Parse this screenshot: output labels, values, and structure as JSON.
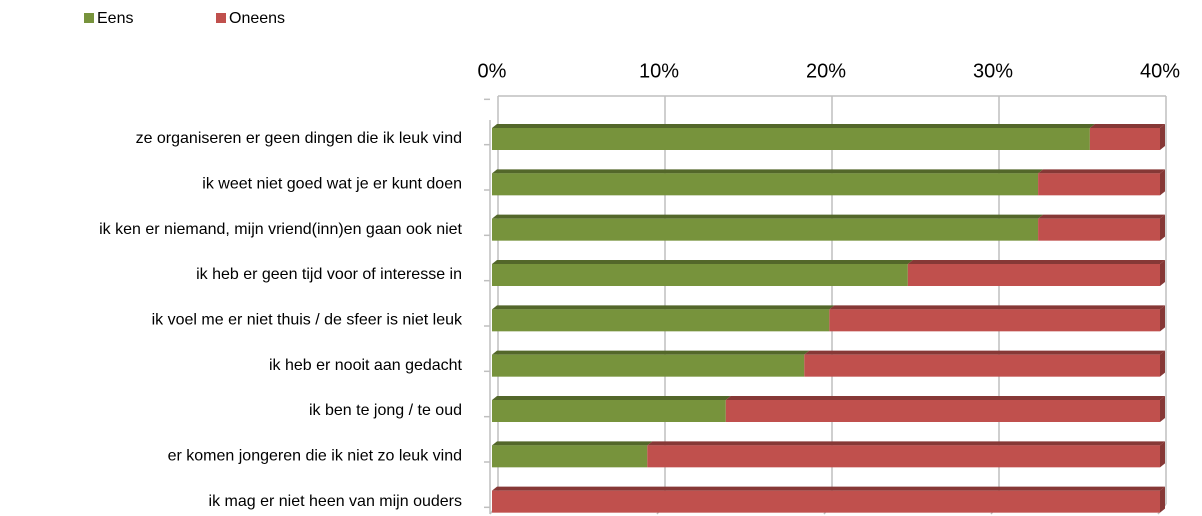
{
  "chart_data": {
    "type": "stacked-barh",
    "categories": [
      "ze organiseren er geen dingen die ik leuk vind",
      "ik weet niet goed wat je er kunt doen",
      "ik ken er niemand, mijn vriend(inn)en gaan ook niet",
      "ik heb er geen tijd voor of interesse in",
      "ik voel me er niet thuis / de sfeer is niet leuk",
      "ik heb er nooit aan gedacht",
      "ik ben te jong / te oud",
      "er komen jongeren die ik niet zo leuk vind",
      "ik mag er niet heen van mijn ouders"
    ],
    "series": [
      {
        "name": "Eens",
        "color": "#77933c",
        "values": [
          35.8,
          32.7,
          32.7,
          24.9,
          20.2,
          18.7,
          14.0,
          9.3,
          0
        ]
      },
      {
        "name": "Oneens",
        "color": "#c0504d",
        "values": [
          4.2,
          7.3,
          7.3,
          15.1,
          19.8,
          21.3,
          26.0,
          30.7,
          40
        ]
      }
    ],
    "xlim": [
      0,
      40
    ],
    "xticks": [
      {
        "value": 0,
        "label": "0%"
      },
      {
        "value": 10,
        "label": "10%"
      },
      {
        "value": 20,
        "label": "20%"
      },
      {
        "value": 30,
        "label": "30%"
      },
      {
        "value": 40,
        "label": "40%"
      }
    ],
    "grid": true,
    "legend": "top-left"
  }
}
